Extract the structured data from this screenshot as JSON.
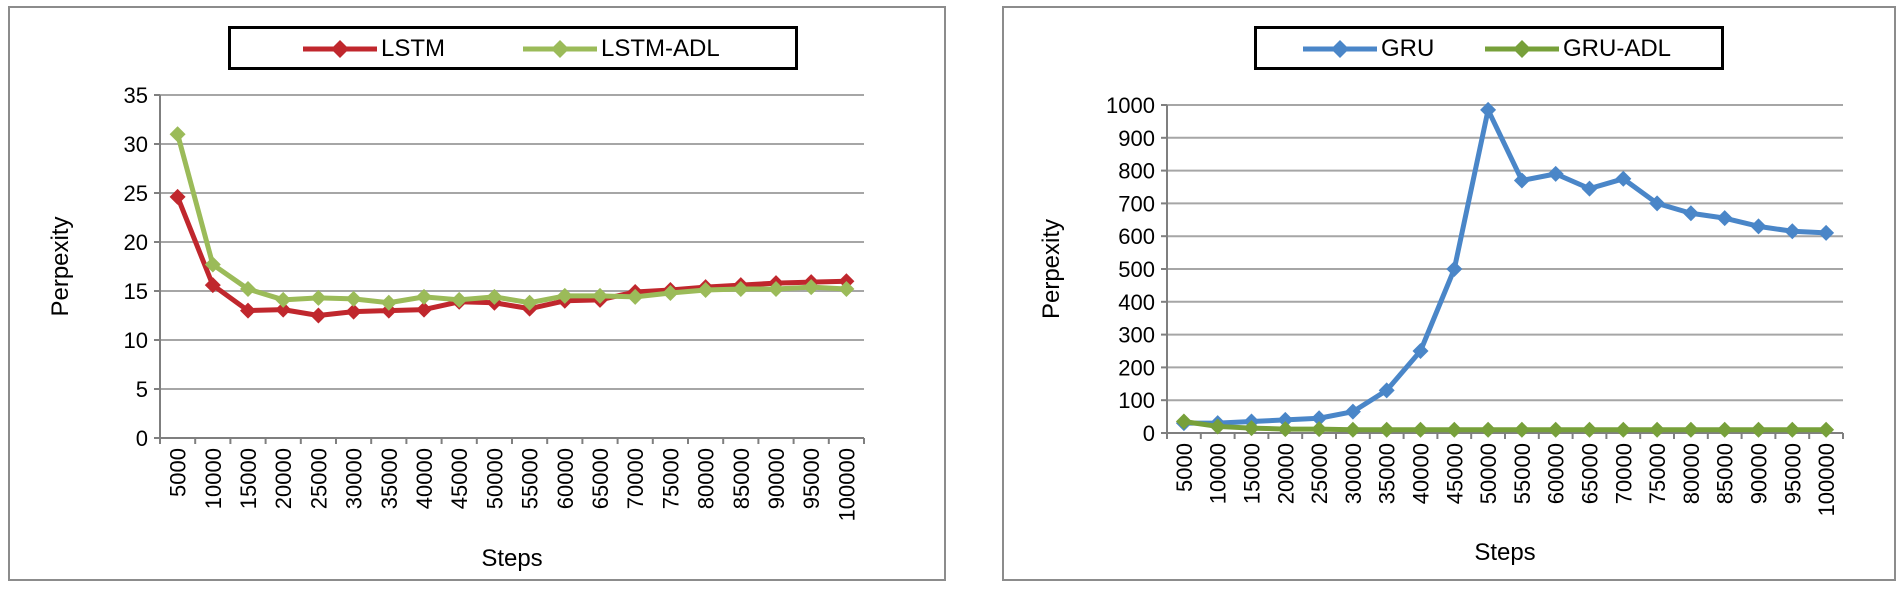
{
  "chart_data": [
    {
      "type": "line",
      "title": "",
      "xlabel": "Steps",
      "ylabel": "Perpexity",
      "ylim": [
        0,
        35
      ],
      "yticks": [
        0,
        5,
        10,
        15,
        20,
        25,
        30,
        35
      ],
      "grid": true,
      "legend_position": "top",
      "categories": [
        "5000",
        "10000",
        "15000",
        "20000",
        "25000",
        "30000",
        "35000",
        "40000",
        "45000",
        "50000",
        "55000",
        "60000",
        "65000",
        "70000",
        "75000",
        "80000",
        "85000",
        "90000",
        "95000",
        "100000"
      ],
      "series": [
        {
          "name": "LSTM",
          "color": "#c0272d",
          "marker": "diamond",
          "values": [
            24.6,
            15.6,
            13.0,
            13.1,
            12.5,
            12.9,
            13.0,
            13.1,
            13.9,
            13.8,
            13.2,
            14.0,
            14.1,
            14.9,
            15.1,
            15.4,
            15.6,
            15.8,
            15.9,
            16.0
          ]
        },
        {
          "name": "LSTM-ADL",
          "color": "#9bbb59",
          "marker": "diamond",
          "values": [
            31.0,
            17.7,
            15.2,
            14.1,
            14.3,
            14.2,
            13.8,
            14.4,
            14.1,
            14.4,
            13.8,
            14.5,
            14.5,
            14.4,
            14.8,
            15.1,
            15.2,
            15.2,
            15.4,
            15.2
          ]
        }
      ]
    },
    {
      "type": "line",
      "title": "",
      "xlabel": "Steps",
      "ylabel": "Perpexity",
      "ylim": [
        0,
        1000
      ],
      "yticks": [
        0,
        100,
        200,
        300,
        400,
        500,
        600,
        700,
        800,
        900,
        1000
      ],
      "grid": true,
      "legend_position": "top",
      "categories": [
        "5000",
        "10000",
        "15000",
        "20000",
        "25000",
        "30000",
        "35000",
        "40000",
        "45000",
        "50000",
        "55000",
        "60000",
        "65000",
        "70000",
        "75000",
        "80000",
        "85000",
        "90000",
        "95000",
        "100000"
      ],
      "series": [
        {
          "name": "GRU",
          "color": "#4a86c8",
          "marker": "diamond",
          "values": [
            30,
            30,
            35,
            40,
            45,
            65,
            130,
            250,
            500,
            985,
            770,
            790,
            745,
            775,
            700,
            670,
            655,
            630,
            615,
            610
          ]
        },
        {
          "name": "GRU-ADL",
          "color": "#77a03a",
          "marker": "diamond",
          "values": [
            35,
            20,
            15,
            12,
            12,
            10,
            10,
            10,
            10,
            10,
            10,
            10,
            10,
            10,
            10,
            10,
            10,
            10,
            10,
            10
          ]
        }
      ]
    }
  ]
}
